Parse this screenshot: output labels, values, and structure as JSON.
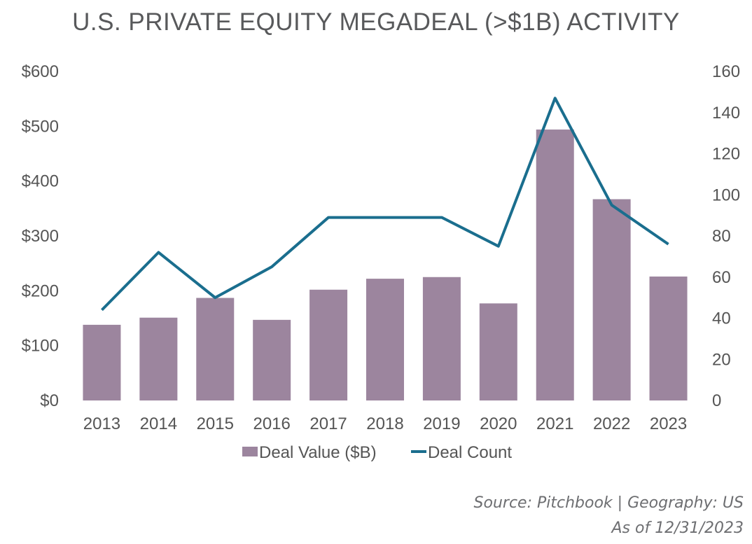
{
  "chart_data": {
    "type": "bar+line",
    "title": "U.S. PRIVATE EQUITY MEGADEAL (>$1B) ACTIVITY",
    "categories": [
      "2013",
      "2014",
      "2015",
      "2016",
      "2017",
      "2018",
      "2019",
      "2020",
      "2021",
      "2022",
      "2023"
    ],
    "series": [
      {
        "name": "Deal Value ($B)",
        "type": "bar",
        "axis": "left",
        "values": [
          138,
          151,
          187,
          147,
          202,
          222,
          225,
          177,
          494,
          367,
          226
        ]
      },
      {
        "name": "Deal Count",
        "type": "line",
        "axis": "right",
        "values": [
          44,
          72,
          50,
          65,
          89,
          89,
          89,
          75,
          147,
          95,
          76
        ]
      }
    ],
    "left_axis": {
      "min": 0,
      "max": 600,
      "ticks": [
        0,
        100,
        200,
        300,
        400,
        500,
        600
      ],
      "tick_labels": [
        "$0",
        "$100",
        "$200",
        "$300",
        "$400",
        "$500",
        "$600"
      ]
    },
    "right_axis": {
      "min": 0,
      "max": 160,
      "ticks": [
        0,
        20,
        40,
        60,
        80,
        100,
        120,
        140,
        160
      ],
      "tick_labels": [
        "0",
        "20",
        "40",
        "60",
        "80",
        "100",
        "120",
        "140",
        "160"
      ]
    },
    "legend": [
      "Deal Value ($B)",
      "Deal Count"
    ],
    "legend_position": "bottom",
    "grid": false
  },
  "colors": {
    "bar": "#9c859e",
    "line": "#1a6e8e",
    "text": "#555555",
    "title": "#58595b"
  },
  "source": {
    "line1": "Source: Pitchbook | Geography: US",
    "line2": "As of 12/31/2023"
  }
}
